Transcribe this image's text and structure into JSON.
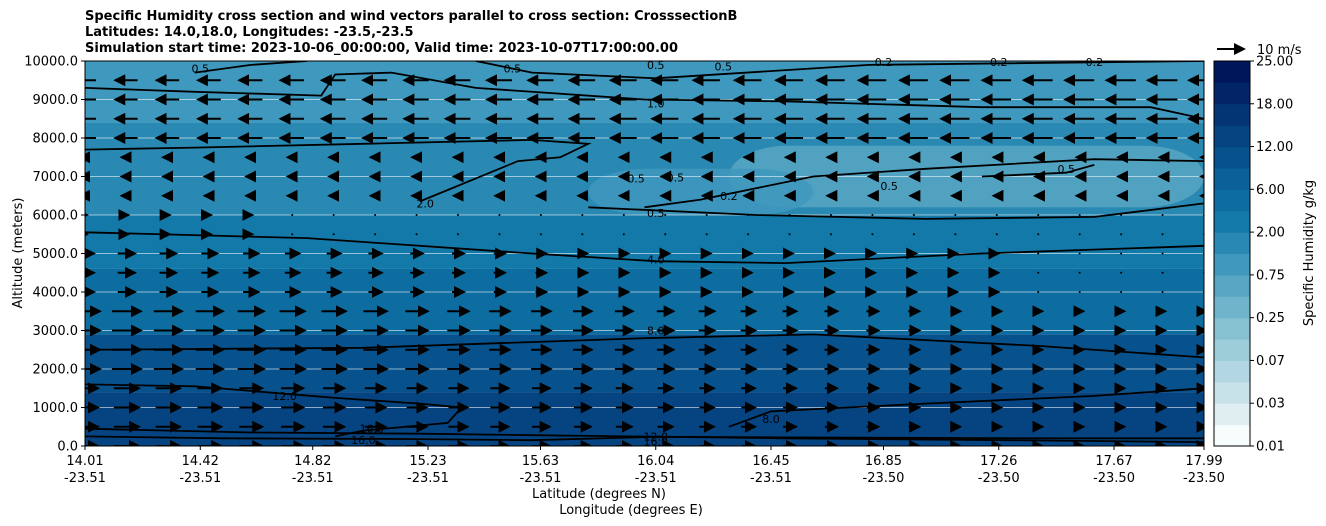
{
  "chart_data": {
    "type": "contour",
    "title_lines": [
      "Specific Humidity cross section and wind vectors parallel to cross section: CrosssectionB",
      "Latitudes: 14.0,18.0, Longitudes: -23.5,-23.5",
      "Simulation start time: 2023-10-06_00:00:00, Valid time: 2023-10-07T17:00:00.00"
    ],
    "ylabel": "Altitude (meters)",
    "xlabel_lat": "Latitude (degrees N)",
    "xlabel_lon": "Longitude (degrees E)",
    "ylim": [
      0,
      10000
    ],
    "yticks": [
      "0.0",
      "1000.0",
      "2000.0",
      "3000.0",
      "4000.0",
      "5000.0",
      "6000.0",
      "7000.0",
      "8000.0",
      "9000.0",
      "10000.0"
    ],
    "xticks_lat": [
      "14.01",
      "14.42",
      "14.82",
      "15.23",
      "15.63",
      "16.04",
      "16.45",
      "16.85",
      "17.26",
      "17.67",
      "17.99"
    ],
    "xticks_lon": [
      "-23.51",
      "-23.51",
      "-23.51",
      "-23.51",
      "-23.51",
      "-23.51",
      "-23.51",
      "-23.50",
      "-23.50",
      "-23.50",
      "-23.50"
    ],
    "colorbar": {
      "label": "Specific Humidity g/kg",
      "levels": [
        0.01,
        0.02,
        0.03,
        0.05,
        0.07,
        0.1,
        0.25,
        0.5,
        0.75,
        1.0,
        2.0,
        4.0,
        6.0,
        8.0,
        12.0,
        16.0,
        18.0,
        20.0,
        25.0
      ],
      "tick_labels": [
        "0.01",
        "0.03",
        "0.07",
        "0.25",
        "0.75",
        "2.00",
        "6.00",
        "12.00",
        "18.00",
        "25.00"
      ],
      "colors": [
        "#f7fcfd",
        "#e0eef2",
        "#c8e2ea",
        "#b2d7e2",
        "#9dcdd9",
        "#86c1d2",
        "#6fb4cb",
        "#58a6c3",
        "#3f98bd",
        "#2a89b3",
        "#1279a9",
        "#0d6ca0",
        "#0a6098",
        "#07528d",
        "#054481",
        "#033474",
        "#022568",
        "#00165a"
      ]
    },
    "quiver_key": "10 m/s",
    "contour_labels": [
      {
        "text": "0.5",
        "lat": 14.42,
        "alt": 9800
      },
      {
        "text": "0.5",
        "lat": 15.53,
        "alt": 9800
      },
      {
        "text": "0.5",
        "lat": 16.04,
        "alt": 9900
      },
      {
        "text": "0.5",
        "lat": 16.28,
        "alt": 9860
      },
      {
        "text": "0.2",
        "lat": 16.85,
        "alt": 9970
      },
      {
        "text": "0.2",
        "lat": 17.26,
        "alt": 9970
      },
      {
        "text": "0.2",
        "lat": 17.6,
        "alt": 9970
      },
      {
        "text": "1.0",
        "lat": 16.04,
        "alt": 8900
      },
      {
        "text": "0.5",
        "lat": 15.97,
        "alt": 6950
      },
      {
        "text": "0.5",
        "lat": 16.11,
        "alt": 6980
      },
      {
        "text": "0.2",
        "lat": 16.3,
        "alt": 6500
      },
      {
        "text": "0.5",
        "lat": 16.04,
        "alt": 6050
      },
      {
        "text": "0.5",
        "lat": 16.87,
        "alt": 6750
      },
      {
        "text": "0.5",
        "lat": 17.5,
        "alt": 7200
      },
      {
        "text": "2.0",
        "lat": 15.22,
        "alt": 6300
      },
      {
        "text": "4.0",
        "lat": 16.04,
        "alt": 4850
      },
      {
        "text": "8.0",
        "lat": 16.04,
        "alt": 3000
      },
      {
        "text": "12.0",
        "lat": 14.72,
        "alt": 1300
      },
      {
        "text": "8.0",
        "lat": 16.45,
        "alt": 700
      },
      {
        "text": "16.0",
        "lat": 15.0,
        "alt": 150
      },
      {
        "text": "16.0",
        "lat": 15.03,
        "alt": 450
      },
      {
        "text": "12.0",
        "lat": 16.04,
        "alt": 250
      },
      {
        "text": "16.0",
        "lat": 16.04,
        "alt": 120
      }
    ],
    "contours": [
      {
        "level": "16.0",
        "points": [
          [
            14.01,
            450
          ],
          [
            14.6,
            350
          ],
          [
            15.2,
            320
          ],
          [
            15.6,
            280
          ],
          [
            16.5,
            200
          ],
          [
            17.3,
            150
          ],
          [
            17.99,
            100
          ]
        ]
      },
      {
        "level": "12.0",
        "points": [
          [
            14.01,
            250
          ],
          [
            14.5,
            200
          ],
          [
            15.2,
            180
          ],
          [
            15.6,
            150
          ],
          [
            16.04,
            240
          ],
          [
            16.6,
            220
          ],
          [
            17.4,
            200
          ],
          [
            17.99,
            200
          ]
        ]
      },
      {
        "level": "12.0",
        "points": [
          [
            14.01,
            1600
          ],
          [
            14.4,
            1550
          ],
          [
            14.9,
            1250
          ],
          [
            15.2,
            1100
          ],
          [
            15.35,
            1000
          ],
          [
            15.3,
            600
          ],
          [
            15.0,
            400
          ],
          [
            14.9,
            250
          ]
        ]
      },
      {
        "level": "8.0",
        "points": [
          [
            16.3,
            500
          ],
          [
            16.45,
            900
          ],
          [
            17.0,
            1100
          ],
          [
            17.6,
            1300
          ],
          [
            17.99,
            1500
          ]
        ]
      },
      {
        "level": "8.0",
        "points": [
          [
            14.01,
            2500
          ],
          [
            15.0,
            2550
          ],
          [
            16.0,
            2800
          ],
          [
            16.6,
            2900
          ],
          [
            17.4,
            2600
          ],
          [
            17.99,
            2300
          ]
        ]
      },
      {
        "level": "4.0",
        "points": [
          [
            14.01,
            5550
          ],
          [
            14.8,
            5400
          ],
          [
            15.6,
            5000
          ],
          [
            16.04,
            4800
          ],
          [
            16.5,
            4750
          ],
          [
            17.2,
            5000
          ],
          [
            17.99,
            5200
          ]
        ]
      },
      {
        "level": "2.0",
        "points": [
          [
            15.2,
            6350
          ],
          [
            15.3,
            6650
          ],
          [
            15.55,
            7400
          ],
          [
            15.7,
            7500
          ],
          [
            15.8,
            7850
          ],
          [
            15.6,
            7950
          ],
          [
            15.0,
            7850
          ],
          [
            14.4,
            7750
          ],
          [
            14.01,
            7700
          ]
        ]
      },
      {
        "level": "2.0",
        "points": [
          [
            15.8,
            6200
          ],
          [
            16.4,
            6000
          ],
          [
            17.0,
            5900
          ],
          [
            17.6,
            5950
          ],
          [
            17.99,
            6300
          ]
        ]
      },
      {
        "level": "1.0",
        "points": [
          [
            14.01,
            9300
          ],
          [
            14.4,
            9200
          ],
          [
            14.85,
            9100
          ],
          [
            14.9,
            9650
          ],
          [
            15.1,
            9700
          ],
          [
            15.4,
            9300
          ],
          [
            16.0,
            9000
          ],
          [
            16.5,
            8950
          ],
          [
            17.2,
            8800
          ],
          [
            17.8,
            8800
          ],
          [
            17.99,
            8500
          ]
        ]
      },
      {
        "level": "0.5",
        "points": [
          [
            14.4,
            9700
          ],
          [
            14.6,
            9900
          ],
          [
            14.8,
            10000
          ]
        ]
      },
      {
        "level": "0.5",
        "points": [
          [
            15.4,
            10000
          ],
          [
            15.6,
            9700
          ],
          [
            16.04,
            9550
          ],
          [
            16.8,
            9900
          ],
          [
            17.99,
            10000
          ]
        ]
      },
      {
        "level": "0.5",
        "points": [
          [
            16.0,
            6200
          ],
          [
            16.2,
            6400
          ],
          [
            16.6,
            7000
          ],
          [
            17.0,
            7200
          ],
          [
            17.6,
            7450
          ],
          [
            17.99,
            7400
          ]
        ]
      },
      {
        "level": "0.5",
        "points": [
          [
            17.2,
            7000
          ],
          [
            17.5,
            7100
          ],
          [
            17.6,
            7300
          ]
        ]
      }
    ],
    "shading_bands": [
      {
        "alt_top": 10000,
        "alt_bottom": 8400,
        "color": "#3f98bd"
      },
      {
        "alt_top": 8400,
        "alt_bottom": 6000,
        "color": "#2a89b3"
      },
      {
        "alt_top": 6000,
        "alt_bottom": 4600,
        "color": "#1279a9"
      },
      {
        "alt_top": 4600,
        "alt_bottom": 2900,
        "color": "#0d6ca0"
      },
      {
        "alt_top": 2900,
        "alt_bottom": 1400,
        "color": "#07528d"
      },
      {
        "alt_top": 1400,
        "alt_bottom": 0,
        "color": "#054481"
      }
    ],
    "light_patches": [
      {
        "lat_min": 16.3,
        "lat_max": 17.99,
        "alt_min": 6200,
        "alt_max": 7800,
        "color": "#58a6c3"
      },
      {
        "lat_min": 15.8,
        "lat_max": 16.6,
        "alt_min": 6000,
        "alt_max": 7200,
        "color": "#3f98bd"
      }
    ]
  }
}
